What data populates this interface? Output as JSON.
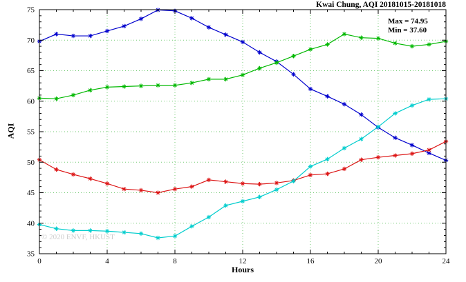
{
  "title": "Kwai Chung, AQI 20181015-20181018",
  "annotations": {
    "max_label": "Max = 74.95",
    "min_label": "Min = 37.60"
  },
  "watermark": "© 2020 ENVF, HKUST",
  "chart_data": {
    "type": "line",
    "title": "Kwai Chung, AQI 20181015-20181018",
    "xlabel": "Hours",
    "ylabel": "AQI",
    "xlim": [
      0,
      24
    ],
    "ylim": [
      35,
      75
    ],
    "xticks": [
      0,
      4,
      8,
      12,
      16,
      20,
      24
    ],
    "yticks": [
      35,
      40,
      45,
      50,
      55,
      60,
      65,
      70,
      75
    ],
    "grid": true,
    "legend_position": "none",
    "grid_color": "#00a000",
    "max": 74.95,
    "min": 37.6,
    "x": [
      0,
      1,
      2,
      3,
      4,
      5,
      6,
      7,
      8,
      9,
      10,
      11,
      12,
      13,
      14,
      15,
      16,
      17,
      18,
      19,
      20,
      21,
      22,
      23,
      24
    ],
    "series": [
      {
        "name": "series-blue",
        "color": "#0000cd",
        "values": [
          69.8,
          71.0,
          70.7,
          70.7,
          71.5,
          72.3,
          73.5,
          74.95,
          74.8,
          73.6,
          72.1,
          70.9,
          69.7,
          68.0,
          66.5,
          64.4,
          62.0,
          60.8,
          59.5,
          57.8,
          55.7,
          54.0,
          52.8,
          51.5,
          50.3
        ]
      },
      {
        "name": "series-green",
        "color": "#00b800",
        "values": [
          60.5,
          60.4,
          61.0,
          61.8,
          62.3,
          62.4,
          62.5,
          62.6,
          62.6,
          63.0,
          63.6,
          63.6,
          64.3,
          65.4,
          66.3,
          67.4,
          68.5,
          69.3,
          71.0,
          70.4,
          70.3,
          69.5,
          69.0,
          69.3,
          69.8
        ]
      },
      {
        "name": "series-red",
        "color": "#dc1414",
        "values": [
          50.4,
          48.8,
          48.0,
          47.3,
          46.5,
          45.6,
          45.4,
          45.0,
          45.6,
          46.0,
          47.1,
          46.8,
          46.5,
          46.4,
          46.6,
          47.0,
          47.9,
          48.1,
          48.9,
          50.4,
          50.8,
          51.1,
          51.4,
          52.0,
          53.4
        ]
      },
      {
        "name": "series-cyan",
        "color": "#00cdcd",
        "values": [
          39.8,
          39.1,
          38.8,
          38.8,
          38.7,
          38.5,
          38.3,
          37.6,
          37.9,
          39.5,
          41.0,
          42.9,
          43.6,
          44.3,
          45.5,
          46.9,
          49.3,
          50.5,
          52.3,
          53.8,
          55.8,
          58.0,
          59.3,
          60.3,
          60.4
        ]
      }
    ]
  }
}
